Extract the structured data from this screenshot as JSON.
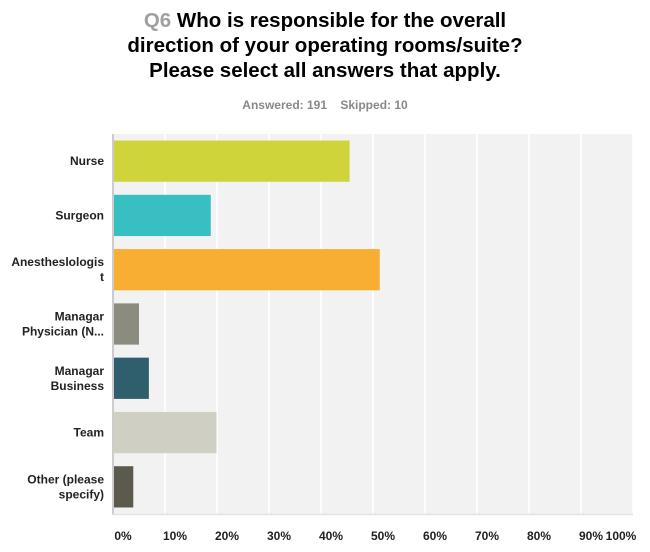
{
  "question": {
    "number": "Q6",
    "text_line1": "Who is responsible for the overall",
    "text_line2": "direction of your operating rooms/suite?",
    "text_line3": "Please select all answers that apply."
  },
  "stats": {
    "answered": "Answered: 191",
    "skipped": "Skipped: 10"
  },
  "chart_data": {
    "type": "bar",
    "orientation": "horizontal",
    "title": "Q6 Who is responsible for the overall direction of your operating rooms/suite? Please select all answers that apply.",
    "categories": [
      [
        "Nurse"
      ],
      [
        "Surgeon"
      ],
      [
        "Anestheslologis",
        "t"
      ],
      [
        "Managar",
        "Physician (N..."
      ],
      [
        "Managar",
        "Business"
      ],
      [
        "Team"
      ],
      [
        "Other (please",
        "specify)"
      ]
    ],
    "values": [
      45.5,
      18.8,
      51.3,
      5.0,
      6.9,
      19.9,
      3.9
    ],
    "colors": [
      "#cfd43b",
      "#37bfc1",
      "#f7ae33",
      "#8c8c7e",
      "#2f5f6d",
      "#d0cfc3",
      "#5c5a4d"
    ],
    "xlim": [
      0,
      100
    ],
    "xticks": [
      "0%",
      "10%",
      "20%",
      "30%",
      "40%",
      "50%",
      "60%",
      "70%",
      "80%",
      "90%",
      "100%"
    ],
    "grid": true,
    "xlabel": "",
    "ylabel": "",
    "unit": "%"
  }
}
